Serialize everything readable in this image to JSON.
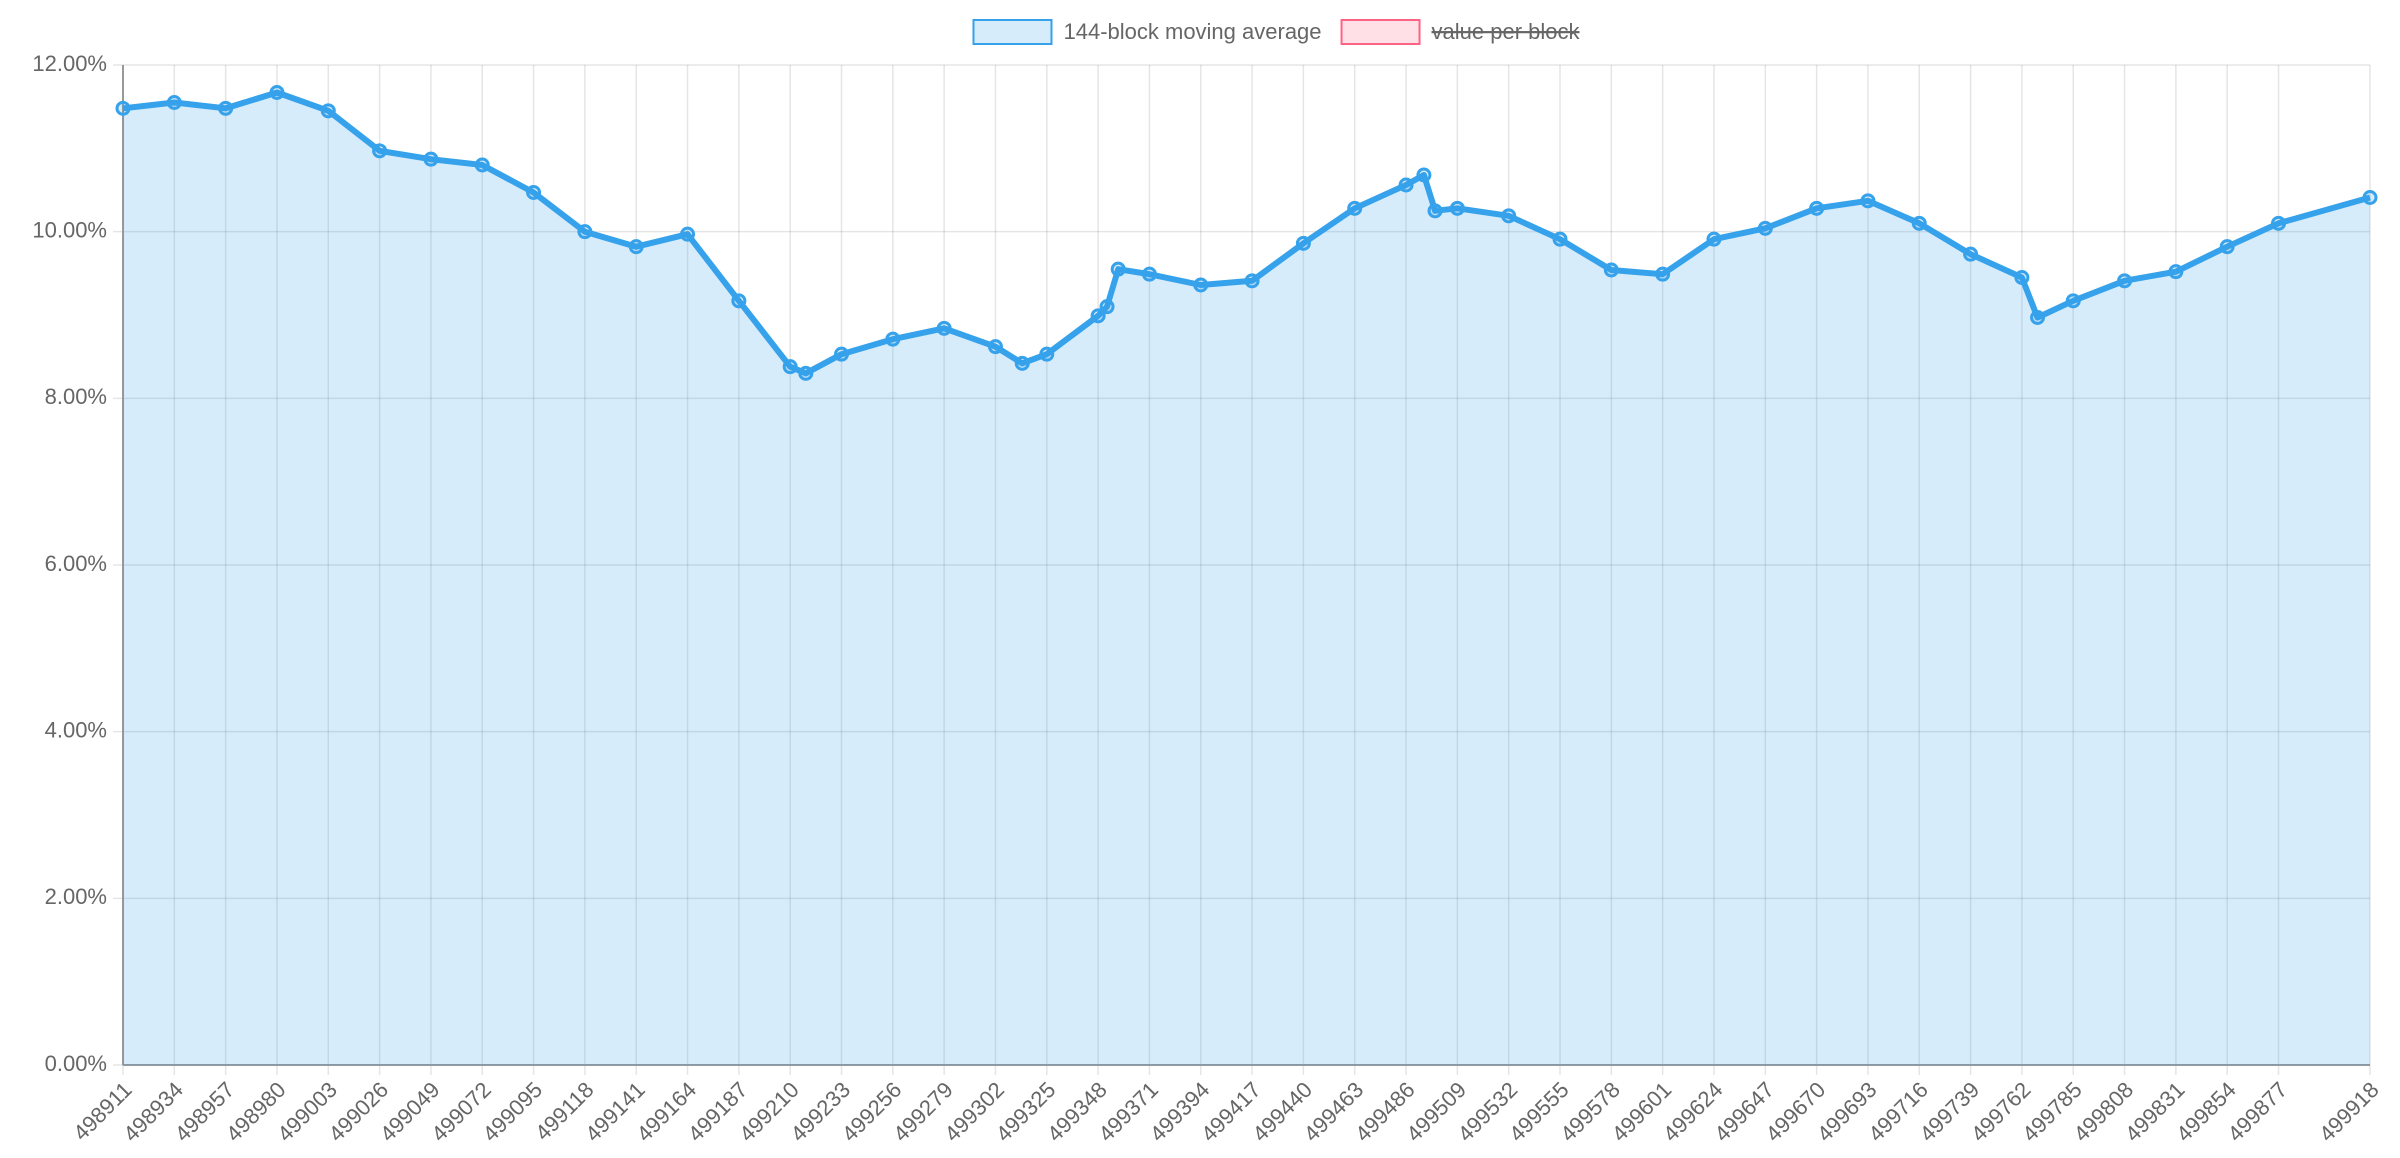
{
  "chart_data": {
    "type": "line",
    "x": [
      498911,
      498934,
      498957,
      498980,
      499003,
      499026,
      499049,
      499072,
      499095,
      499118,
      499141,
      499164,
      499187,
      499210,
      499217,
      499233,
      499256,
      499279,
      499302,
      499314,
      499325,
      499348,
      499352,
      499357,
      499371,
      499394,
      499417,
      499440,
      499463,
      499486,
      499494,
      499499,
      499509,
      499532,
      499555,
      499578,
      499601,
      499624,
      499647,
      499670,
      499693,
      499716,
      499739,
      499762,
      499769,
      499785,
      499808,
      499831,
      499854,
      499877,
      499918
    ],
    "series": [
      {
        "name": "144-block moving average",
        "color": "#36a2eb",
        "fill": "rgba(54,162,235,0.2)",
        "values": [
          11.48,
          11.55,
          11.48,
          11.67,
          11.45,
          10.97,
          10.87,
          10.8,
          10.47,
          10.0,
          9.82,
          9.97,
          9.17,
          8.38,
          8.3,
          8.53,
          8.71,
          8.84,
          8.62,
          8.42,
          8.53,
          8.99,
          9.1,
          9.55,
          9.49,
          9.36,
          9.41,
          9.86,
          10.28,
          10.56,
          10.68,
          10.25,
          10.28,
          10.19,
          9.91,
          9.54,
          9.49,
          9.91,
          10.04,
          10.28,
          10.37,
          10.1,
          9.73,
          9.45,
          8.97,
          9.17,
          9.41,
          9.52,
          9.82,
          10.1,
          10.41
        ]
      },
      {
        "name": "value per block",
        "color": "#ff6384",
        "fill": "rgba(255,99,132,0.2)",
        "hidden": true
      }
    ],
    "xlim": [
      498911,
      499918
    ],
    "xticks": [
      498911,
      498934,
      498957,
      498980,
      499003,
      499026,
      499049,
      499072,
      499095,
      499118,
      499141,
      499164,
      499187,
      499210,
      499233,
      499256,
      499279,
      499302,
      499325,
      499348,
      499371,
      499394,
      499417,
      499440,
      499463,
      499486,
      499509,
      499532,
      499555,
      499578,
      499601,
      499624,
      499647,
      499670,
      499693,
      499716,
      499739,
      499762,
      499785,
      499808,
      499831,
      499854,
      499877,
      499918
    ],
    "ylim": [
      0,
      12
    ],
    "yticks": [
      {
        "value": 0,
        "label": "0.00%"
      },
      {
        "value": 2,
        "label": "2.00%"
      },
      {
        "value": 4,
        "label": "4.00%"
      },
      {
        "value": 6,
        "label": "6.00%"
      },
      {
        "value": 8,
        "label": "8.00%"
      },
      {
        "value": 10,
        "label": "10.00%"
      },
      {
        "value": 12,
        "label": "12.00%"
      }
    ],
    "grid": true,
    "legend": "top"
  }
}
